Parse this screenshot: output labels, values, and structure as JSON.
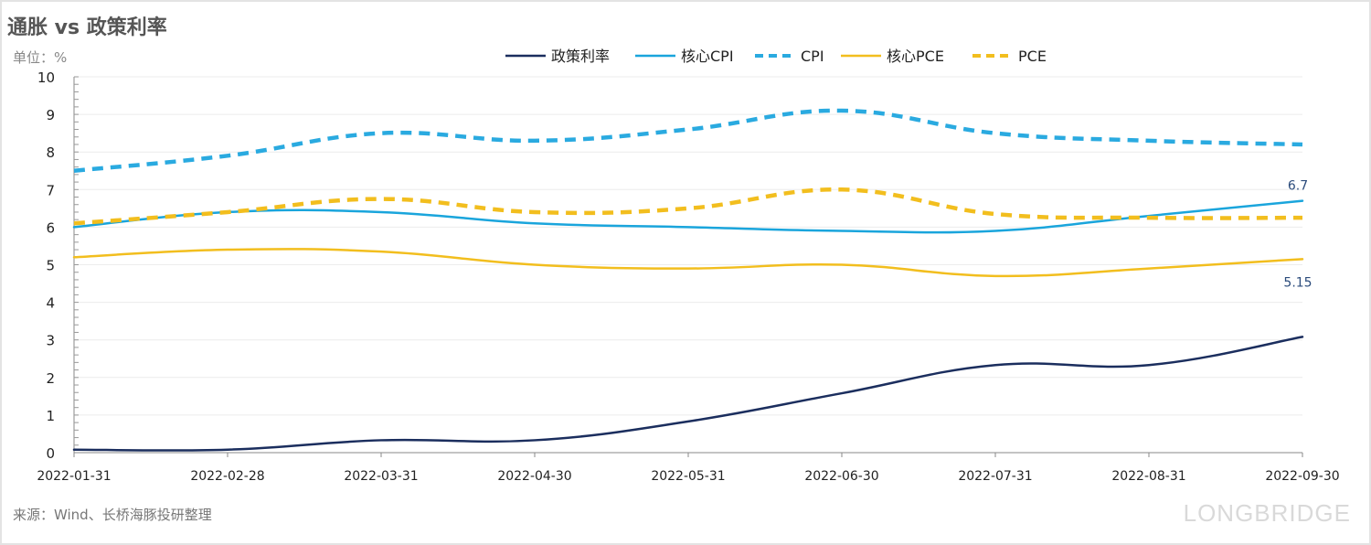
{
  "title": "通胀 vs 政策利率",
  "unit_label": "单位：%",
  "source": "来源：Wind、长桥海豚投研整理",
  "watermark": "LONGBRIDGE",
  "chart_data": {
    "type": "line",
    "title": "通胀 vs 政策利率",
    "x": [
      "2022-01-31",
      "2022-02-28",
      "2022-03-31",
      "2022-04-30",
      "2022-05-31",
      "2022-06-30",
      "2022-07-31",
      "2022-08-31",
      "2022-09-30"
    ],
    "ylim": [
      0,
      10
    ],
    "yticks": [
      0,
      1,
      2,
      3,
      4,
      5,
      6,
      7,
      8,
      9,
      10
    ],
    "grid": true,
    "legend": "top-center",
    "series": [
      {
        "name": "政策利率",
        "color": "#1b2e5e",
        "style": "solid",
        "values": [
          0.08,
          0.08,
          0.33,
          0.33,
          0.83,
          1.58,
          2.33,
          2.33,
          3.08
        ]
      },
      {
        "name": "核心CPI",
        "color": "#1aa5dc",
        "style": "solid",
        "values": [
          6.0,
          6.4,
          6.4,
          6.1,
          6.0,
          5.9,
          5.9,
          6.3,
          6.7
        ],
        "end_label": "6.7"
      },
      {
        "name": "CPI",
        "color": "#2aaae0",
        "style": "dashed",
        "values": [
          7.5,
          7.9,
          8.5,
          8.3,
          8.6,
          9.1,
          8.5,
          8.3,
          8.2
        ]
      },
      {
        "name": "核心PCE",
        "color": "#f2be1e",
        "style": "solid",
        "values": [
          5.2,
          5.4,
          5.35,
          5.0,
          4.9,
          5.0,
          4.7,
          4.9,
          5.15
        ],
        "end_label": "5.15"
      },
      {
        "name": "PCE",
        "color": "#f2be1e",
        "style": "dashed",
        "values": [
          6.1,
          6.4,
          6.75,
          6.4,
          6.5,
          7.0,
          6.35,
          6.25,
          6.25
        ]
      }
    ]
  }
}
